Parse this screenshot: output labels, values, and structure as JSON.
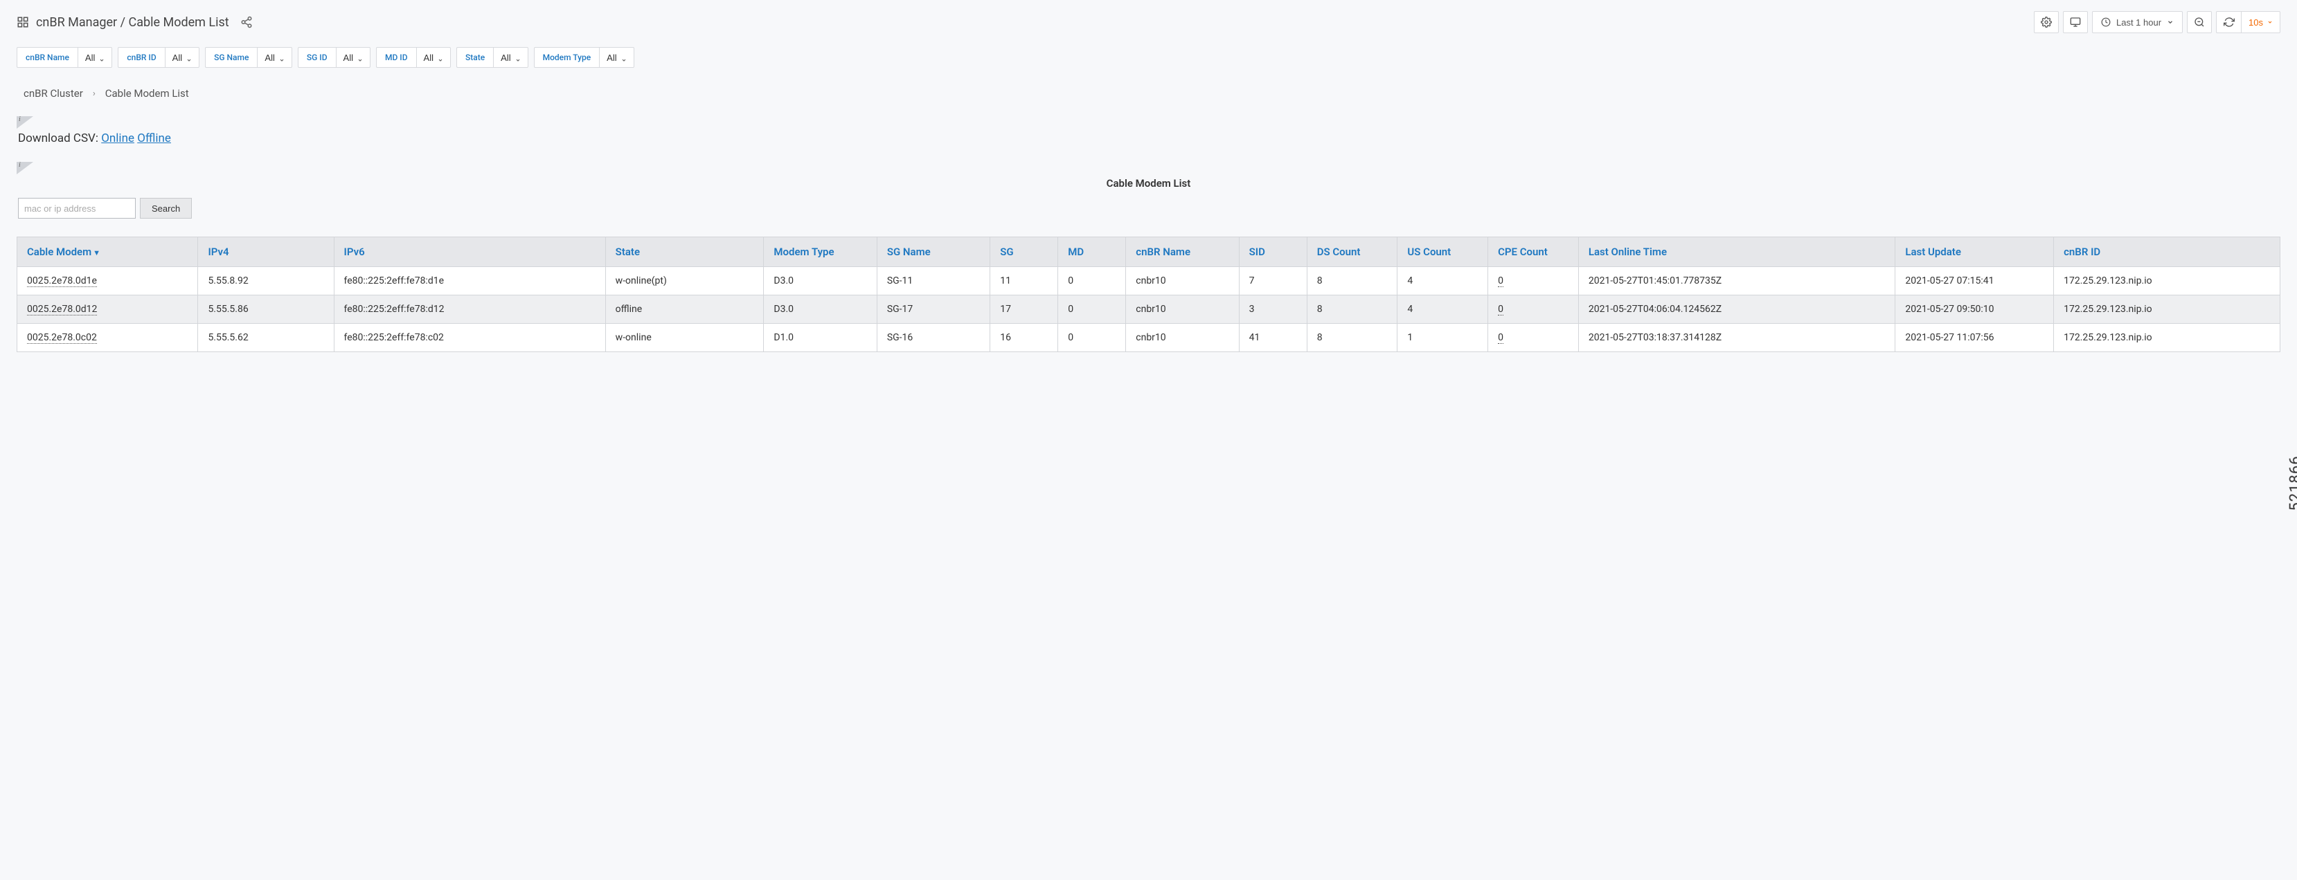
{
  "header": {
    "title": "cnBR Manager / Cable Modem List",
    "time_range": "Last 1 hour",
    "refresh_interval": "10s"
  },
  "filters": [
    {
      "label": "cnBR Name",
      "value": "All"
    },
    {
      "label": "cnBR ID",
      "value": "All"
    },
    {
      "label": "SG Name",
      "value": "All"
    },
    {
      "label": "SG ID",
      "value": "All"
    },
    {
      "label": "MD ID",
      "value": "All"
    },
    {
      "label": "State",
      "value": "All"
    },
    {
      "label": "Modem Type",
      "value": "All"
    }
  ],
  "breadcrumb": {
    "parent": "cnBR Cluster",
    "current": "Cable Modem List"
  },
  "download": {
    "label": "Download CSV:",
    "online": "Online",
    "offline": "Offline"
  },
  "panel_title": "Cable Modem List",
  "search": {
    "placeholder": "mac or ip address",
    "button": "Search"
  },
  "table": {
    "columns": [
      {
        "label": "Cable Modem",
        "width": "8%",
        "sorted": true
      },
      {
        "label": "IPv4",
        "width": "6%"
      },
      {
        "label": "IPv6",
        "width": "12%"
      },
      {
        "label": "State",
        "width": "7%"
      },
      {
        "label": "Modem Type",
        "width": "5%"
      },
      {
        "label": "SG Name",
        "width": "5%"
      },
      {
        "label": "SG",
        "width": "3%"
      },
      {
        "label": "MD",
        "width": "3%"
      },
      {
        "label": "cnBR Name",
        "width": "5%"
      },
      {
        "label": "SID",
        "width": "3%"
      },
      {
        "label": "DS Count",
        "width": "4%"
      },
      {
        "label": "US Count",
        "width": "4%"
      },
      {
        "label": "CPE Count",
        "width": "4%"
      },
      {
        "label": "Last Online Time",
        "width": "14%"
      },
      {
        "label": "Last Update",
        "width": "7%"
      },
      {
        "label": "cnBR ID",
        "width": "10%"
      }
    ],
    "rows": [
      {
        "mac": "0025.2e78.0d1e",
        "ipv4": "5.55.8.92",
        "ipv6": "fe80::225:2eff:fe78:d1e",
        "state": "w-online(pt)",
        "modem_type": "D3.0",
        "sg_name": "SG-11",
        "sg": "11",
        "md": "0",
        "cnbr_name": "cnbr10",
        "sid": "7",
        "ds_count": "8",
        "us_count": "4",
        "cpe_count": "0",
        "last_online": "2021-05-27T01:45:01.778735Z",
        "last_update": "2021-05-27 07:15:41",
        "cnbr_id": "172.25.29.123.nip.io"
      },
      {
        "mac": "0025.2e78.0d12",
        "ipv4": "5.55.5.86",
        "ipv6": "fe80::225:2eff:fe78:d12",
        "state": "offline",
        "modem_type": "D3.0",
        "sg_name": "SG-17",
        "sg": "17",
        "md": "0",
        "cnbr_name": "cnbr10",
        "sid": "3",
        "ds_count": "8",
        "us_count": "4",
        "cpe_count": "0",
        "last_online": "2021-05-27T04:06:04.124562Z",
        "last_update": "2021-05-27 09:50:10",
        "cnbr_id": "172.25.29.123.nip.io"
      },
      {
        "mac": "0025.2e78.0c02",
        "ipv4": "5.55.5.62",
        "ipv6": "fe80::225:2eff:fe78:c02",
        "state": "w-online",
        "modem_type": "D1.0",
        "sg_name": "SG-16",
        "sg": "16",
        "md": "0",
        "cnbr_name": "cnbr10",
        "sid": "41",
        "ds_count": "8",
        "us_count": "1",
        "cpe_count": "0",
        "last_online": "2021-05-27T03:18:37.314128Z",
        "last_update": "2021-05-27 11:07:56",
        "cnbr_id": "172.25.29.123.nip.io"
      }
    ]
  },
  "side_label": "521866"
}
